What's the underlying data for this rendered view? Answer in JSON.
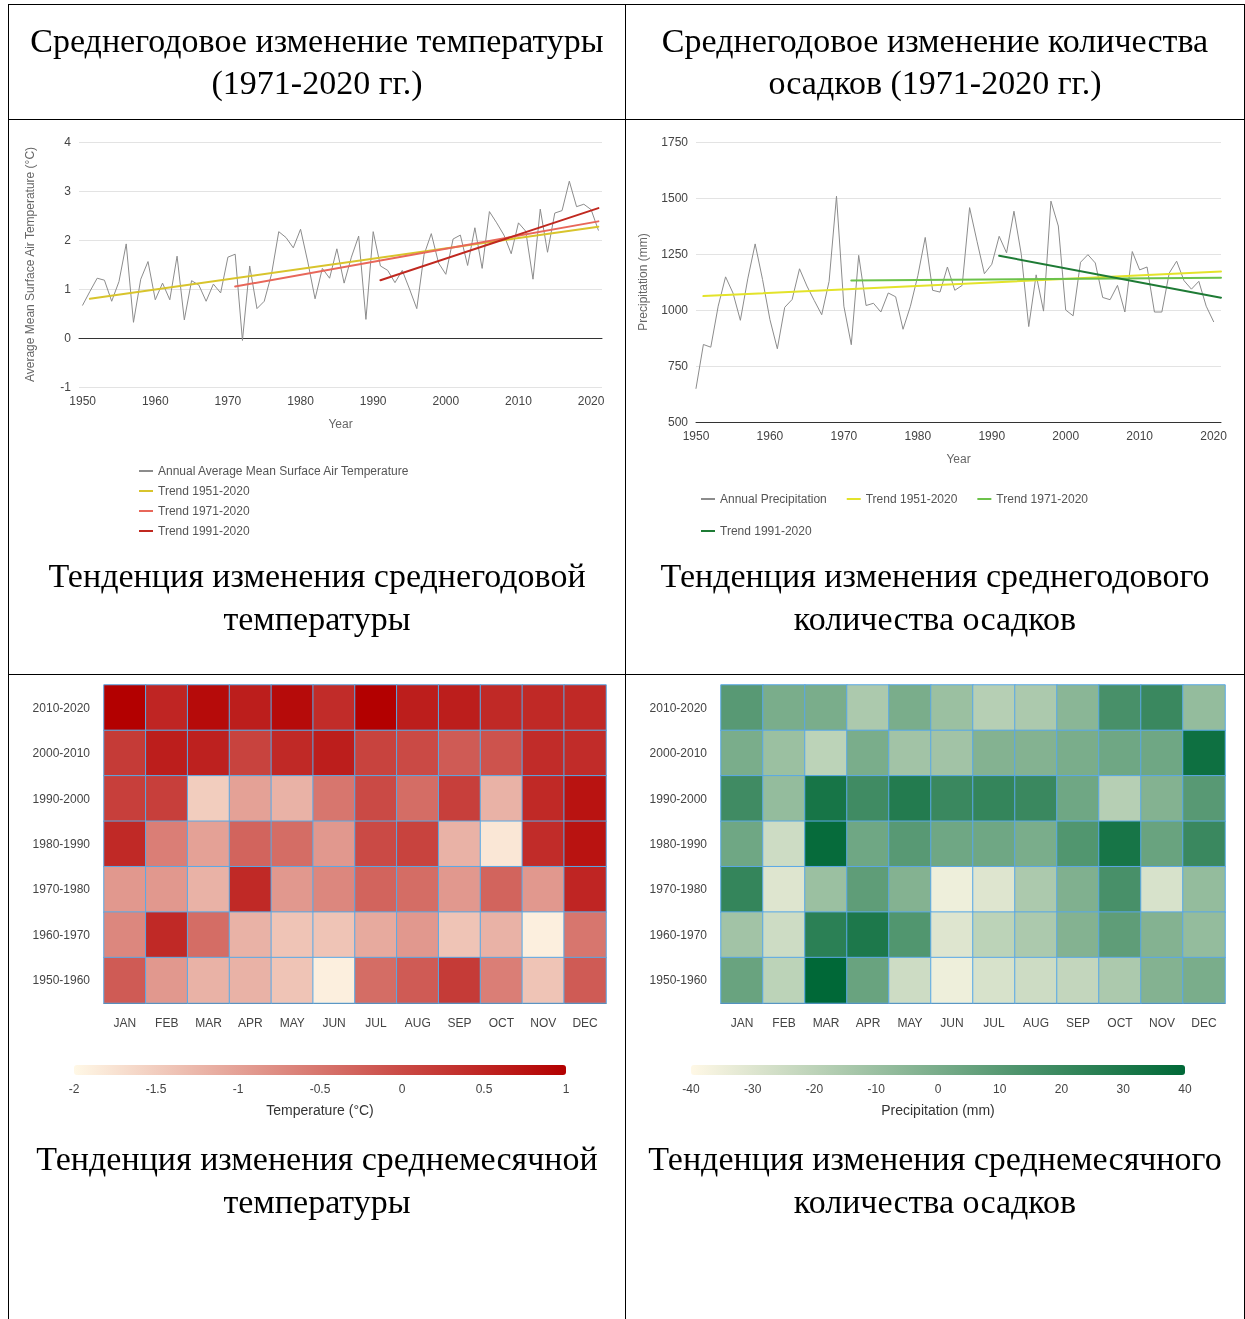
{
  "chart_data": [
    {
      "type": "line",
      "title": "Среднегодовое изменение температуры (1971-2020 гг.)",
      "annotations": [
        "Тенденция изменения среднегодовой температуры"
      ],
      "xlabel": "Year",
      "ylabel": "Average Mean Surface Air Temperature (°C)",
      "xlim": [
        1949.5,
        2021.5
      ],
      "xticks": [
        1950,
        1960,
        1970,
        1980,
        1990,
        2000,
        2010,
        2020
      ],
      "ylim": [
        -1,
        4
      ],
      "yticks": [
        -1,
        0,
        1,
        2,
        3,
        4
      ],
      "grid": "y",
      "legend": "bottom",
      "marker": "none",
      "series": [
        {
          "name": "Annual Average Mean Surface Air Temperature",
          "color": "#8c8c8c",
          "x": [
            1950,
            1951,
            1952,
            1953,
            1954,
            1955,
            1956,
            1957,
            1958,
            1959,
            1960,
            1961,
            1962,
            1963,
            1964,
            1965,
            1966,
            1967,
            1968,
            1969,
            1970,
            1971,
            1972,
            1973,
            1974,
            1975,
            1976,
            1977,
            1978,
            1979,
            1980,
            1981,
            1982,
            1983,
            1984,
            1985,
            1986,
            1987,
            1988,
            1989,
            1990,
            1991,
            1992,
            1993,
            1994,
            1995,
            1996,
            1997,
            1998,
            1999,
            2000,
            2001,
            2002,
            2003,
            2004,
            2005,
            2006,
            2007,
            2008,
            2009,
            2010,
            2011,
            2012,
            2013,
            2014,
            2015,
            2016,
            2017,
            2018,
            2019,
            2020,
            2021
          ],
          "values": [
            0.67,
            0.95,
            1.22,
            1.18,
            0.75,
            1.15,
            1.92,
            0.32,
            1.2,
            1.56,
            0.78,
            1.12,
            0.78,
            1.67,
            0.37,
            1.17,
            1.08,
            0.75,
            1.1,
            0.92,
            1.65,
            1.71,
            -0.05,
            1.47,
            0.6,
            0.75,
            1.3,
            2.17,
            2.05,
            1.84,
            2.22,
            1.55,
            0.8,
            1.42,
            1.22,
            1.82,
            1.12,
            1.65,
            2.08,
            0.38,
            2.17,
            1.47,
            1.38,
            1.13,
            1.38,
            1.0,
            0.6,
            1.7,
            2.13,
            1.53,
            1.3,
            2.02,
            2.1,
            1.48,
            2.25,
            1.42,
            2.58,
            2.35,
            2.1,
            1.72,
            2.35,
            2.18,
            1.2,
            2.63,
            1.75,
            2.55,
            2.6,
            3.2,
            2.68,
            2.73,
            2.62,
            2.2
          ]
        },
        {
          "name": "Trend 1951-2020",
          "color": "#d8c42c",
          "x": [
            1951,
            2021
          ],
          "values": [
            0.8,
            2.27
          ]
        },
        {
          "name": "Trend 1971-2020",
          "color": "#e8675a",
          "x": [
            1971,
            2021
          ],
          "values": [
            1.05,
            2.38
          ]
        },
        {
          "name": "Trend 1991-2020",
          "color": "#c0281f",
          "x": [
            1991,
            2021
          ],
          "values": [
            1.18,
            2.65
          ]
        }
      ]
    },
    {
      "type": "line",
      "title": "Среднегодовое изменение количества осадков (1971-2020 гг.)",
      "annotations": [
        "Тенденция изменения среднегодового количества осадков"
      ],
      "xlabel": "Year",
      "ylabel": "Precipitation (mm)",
      "xlim": [
        1950,
        2021
      ],
      "xticks": [
        1950,
        1960,
        1970,
        1980,
        1990,
        2000,
        2010,
        2020
      ],
      "ylim": [
        500,
        1750
      ],
      "yticks": [
        500,
        750,
        1000,
        1250,
        1500,
        1750
      ],
      "grid": "y",
      "legend": "bottom",
      "marker": "none",
      "series": [
        {
          "name": "Annual Precipitation",
          "color": "#8c8c8c",
          "x": [
            1950,
            1951,
            1952,
            1953,
            1954,
            1955,
            1956,
            1957,
            1958,
            1959,
            1960,
            1961,
            1962,
            1963,
            1964,
            1965,
            1966,
            1967,
            1968,
            1969,
            1970,
            1971,
            1972,
            1973,
            1974,
            1975,
            1976,
            1977,
            1978,
            1979,
            1980,
            1981,
            1982,
            1983,
            1984,
            1985,
            1986,
            1987,
            1988,
            1989,
            1990,
            1991,
            1992,
            1993,
            1994,
            1995,
            1996,
            1997,
            1998,
            1999,
            2000,
            2001,
            2002,
            2003,
            2004,
            2005,
            2006,
            2007,
            2008,
            2009,
            2010,
            2011,
            2012,
            2013,
            2014,
            2015,
            2016,
            2017,
            2018,
            2019,
            2020
          ],
          "values": [
            650,
            846,
            834,
            1017,
            1148,
            1076,
            954,
            1139,
            1295,
            1136,
            957,
            827,
            1012,
            1047,
            1184,
            1107,
            1042,
            979,
            1128,
            1508,
            1017,
            845,
            1244,
            1020,
            1030,
            991,
            1076,
            1059,
            914,
            1017,
            1153,
            1324,
            1088,
            1080,
            1192,
            1088,
            1110,
            1457,
            1307,
            1162,
            1204,
            1329,
            1255,
            1441,
            1247,
            926,
            1157,
            995,
            1486,
            1375,
            1000,
            974,
            1213,
            1247,
            1210,
            1056,
            1046,
            1110,
            991,
            1261,
            1179,
            1192,
            991,
            991,
            1165,
            1218,
            1131,
            1093,
            1128,
            1017,
            948
          ]
        },
        {
          "name": "Trend 1951-2020",
          "color": "#e3e32a",
          "x": [
            1951,
            2021
          ],
          "values": [
            1062,
            1172
          ]
        },
        {
          "name": "Trend 1971-2020",
          "color": "#6cc24a",
          "x": [
            1971,
            2021
          ],
          "values": [
            1132,
            1144
          ]
        },
        {
          "name": "Trend 1991-2020",
          "color": "#1e7b35",
          "x": [
            1991,
            2021
          ],
          "values": [
            1242,
            1055
          ]
        }
      ]
    },
    {
      "type": "heatmap",
      "annotations": [
        "Тенденция изменения среднемесячной температуры"
      ],
      "categories": [
        "JAN",
        "FEB",
        "MAR",
        "APR",
        "MAY",
        "JUN",
        "JUL",
        "AUG",
        "SEP",
        "OCT",
        "NOV",
        "DEC"
      ],
      "y_categories": [
        "2010-2020",
        "2000-2010",
        "1990-2000",
        "1980-1990",
        "1970-1980",
        "1960-1970",
        "1950-1960"
      ],
      "clabel": "Temperature (°C)",
      "clim": [
        -2,
        1
      ],
      "cticks": [
        -2,
        -1.5,
        -1,
        -0.5,
        0,
        0.5,
        1
      ],
      "color": "#b30000",
      "cells": [
        [
          1.0,
          0.5,
          0.85,
          0.6,
          0.85,
          0.4,
          1.0,
          0.6,
          0.6,
          0.45,
          0.45,
          0.45
        ],
        [
          0.2,
          0.6,
          0.55,
          0.1,
          0.45,
          0.6,
          0.1,
          0.0,
          -0.2,
          -0.1,
          0.4,
          0.4
        ],
        [
          0.15,
          0.15,
          -1.5,
          -1.0,
          -1.2,
          -0.5,
          0.0,
          -0.4,
          0.15,
          -1.2,
          0.45,
          0.75
        ],
        [
          0.45,
          -0.6,
          -1.0,
          -0.3,
          -0.4,
          -0.9,
          0.0,
          0.1,
          -1.2,
          -1.8,
          0.4,
          0.75
        ],
        [
          -0.9,
          -0.9,
          -1.2,
          0.45,
          -0.9,
          -0.7,
          -0.3,
          -0.4,
          -0.9,
          -0.3,
          -0.9,
          0.5
        ],
        [
          -0.7,
          0.45,
          -0.4,
          -1.2,
          -1.4,
          -1.4,
          -1.1,
          -0.9,
          -1.4,
          -1.2,
          -1.9,
          -0.5
        ],
        [
          -0.2,
          -0.9,
          -1.2,
          -1.2,
          -1.4,
          -1.9,
          -0.4,
          -0.2,
          0.2,
          -0.6,
          -1.4,
          -0.2
        ]
      ]
    },
    {
      "type": "heatmap",
      "annotations": [
        "Тенденция изменения среднемесячного количества осадков"
      ],
      "categories": [
        "JAN",
        "FEB",
        "MAR",
        "APR",
        "MAY",
        "JUN",
        "JUL",
        "AUG",
        "SEP",
        "OCT",
        "NOV",
        "DEC"
      ],
      "y_categories": [
        "2010-2020",
        "2000-2010",
        "1990-2000",
        "1980-1990",
        "1970-1980",
        "1960-1970",
        "1950-1960"
      ],
      "clabel": "Precipitation (mm)",
      "clim": [
        -40,
        40
      ],
      "cticks": [
        -40,
        -30,
        -20,
        -10,
        0,
        10,
        20,
        30,
        40
      ],
      "color": "#006837",
      "cells": [
        [
          10,
          0,
          0,
          -15,
          0,
          -10,
          -18,
          -15,
          -5,
          15,
          20,
          -8
        ],
        [
          0,
          -10,
          -20,
          0,
          -12,
          -12,
          -3,
          -3,
          0,
          3,
          3,
          35
        ],
        [
          18,
          -8,
          32,
          18,
          28,
          20,
          22,
          20,
          3,
          -18,
          -3,
          10
        ],
        [
          3,
          -25,
          38,
          3,
          10,
          3,
          3,
          0,
          12,
          32,
          5,
          20
        ],
        [
          22,
          -30,
          -10,
          8,
          -3,
          -35,
          -30,
          -15,
          -2,
          15,
          -28,
          -8
        ],
        [
          -12,
          -25,
          25,
          30,
          12,
          -30,
          -20,
          -15,
          -3,
          8,
          -3,
          -8
        ],
        [
          5,
          -20,
          40,
          5,
          -25,
          -35,
          -28,
          -25,
          -22,
          -15,
          -3,
          0
        ]
      ]
    }
  ]
}
